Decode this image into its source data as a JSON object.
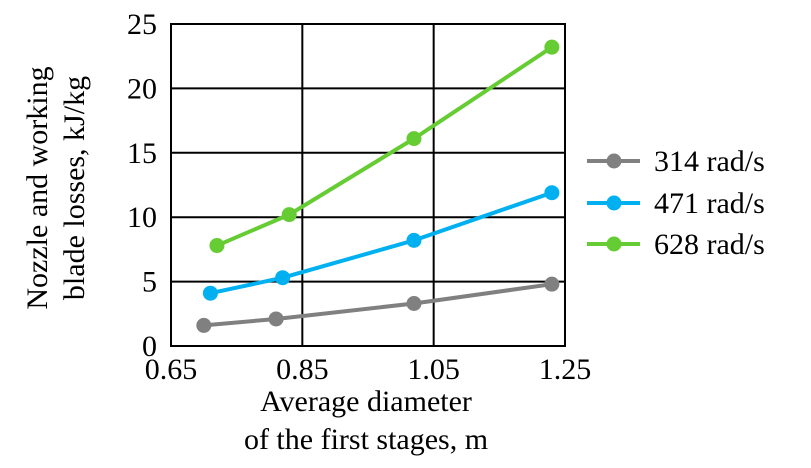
{
  "chart_data": {
    "type": "line",
    "title": "",
    "xlabel": [
      "Average diameter",
      "of the first stages, m"
    ],
    "ylabel": [
      "Nozzle and working",
      "blade losses, kJ/kg"
    ],
    "xlim": [
      0.65,
      1.25
    ],
    "ylim": [
      0,
      25
    ],
    "x_ticks": [
      0.65,
      0.85,
      1.05,
      1.25
    ],
    "x_tick_labels": [
      "0.65",
      "0.85",
      "1.05",
      "1.25"
    ],
    "y_ticks": [
      0,
      5,
      10,
      15,
      20,
      25
    ],
    "y_tick_labels": [
      "0",
      "5",
      "10",
      "15",
      "20",
      "25"
    ],
    "grid": true,
    "legend_position": "right",
    "series": [
      {
        "name": "314 rad/s",
        "color": "#808080",
        "points": [
          [
            0.7,
            1.6
          ],
          [
            0.81,
            2.1
          ],
          [
            1.02,
            3.3
          ],
          [
            1.23,
            4.8
          ]
        ]
      },
      {
        "name": "471 rad/s",
        "color": "#00B0F0",
        "points": [
          [
            0.71,
            4.1
          ],
          [
            0.82,
            5.3
          ],
          [
            1.02,
            8.2
          ],
          [
            1.23,
            11.9
          ]
        ]
      },
      {
        "name": "628 rad/s",
        "color": "#66CC33",
        "points": [
          [
            0.72,
            7.8
          ],
          [
            0.83,
            10.2
          ],
          [
            1.02,
            16.1
          ],
          [
            1.23,
            23.2
          ]
        ]
      }
    ]
  }
}
